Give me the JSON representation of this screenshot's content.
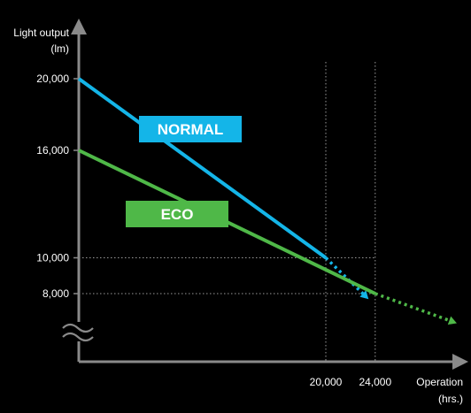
{
  "chart_data": {
    "type": "line",
    "title": "",
    "ylabel": "Light output",
    "ylabel_unit": "(lm)",
    "xlabel": "Operation",
    "xlabel_unit": "(hrs.)",
    "y_break": true,
    "y_ticks": [
      {
        "value": 20000,
        "label": "20,000"
      },
      {
        "value": 16000,
        "label": "16,000"
      },
      {
        "value": 10000,
        "label": "10,000"
      },
      {
        "value": 8000,
        "label": "8,000"
      }
    ],
    "x_ticks": [
      {
        "value": 20000,
        "label": "20,000"
      },
      {
        "value": 24000,
        "label": "24,000"
      }
    ],
    "series": [
      {
        "name": "NORMAL",
        "color": "#14b5e8",
        "solid": [
          {
            "x": 0,
            "y": 20000
          },
          {
            "x": 20000,
            "y": 10000
          }
        ],
        "dotted": [
          {
            "x": 20000,
            "y": 10000
          },
          {
            "x": 23000,
            "y": 8000
          }
        ]
      },
      {
        "name": "ECO",
        "color": "#4fb848",
        "solid": [
          {
            "x": 0,
            "y": 16000
          },
          {
            "x": 24000,
            "y": 8000
          }
        ],
        "dotted": [
          {
            "x": 24000,
            "y": 8000
          },
          {
            "x": 30000,
            "y": 6500
          }
        ]
      }
    ],
    "grid": "dotted reference lines at 10,000 / 8,000 lm and 20,000 / 24,000 hrs",
    "legend": "inline labels on lines"
  }
}
